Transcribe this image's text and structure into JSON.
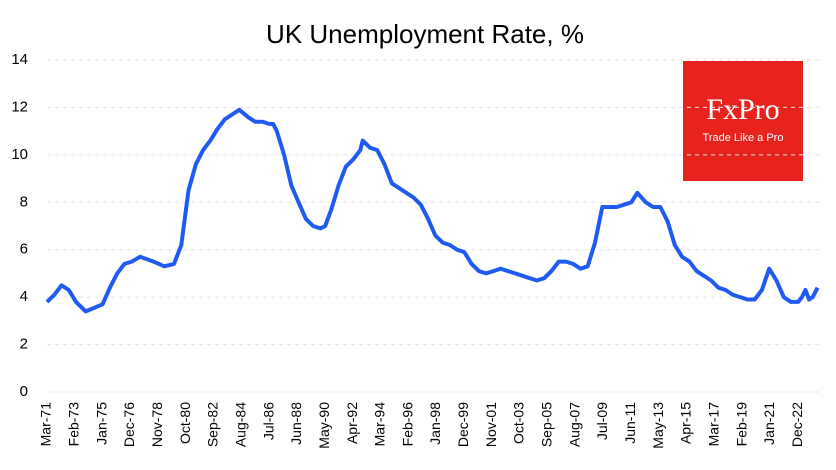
{
  "chart_data": {
    "type": "line",
    "title": "UK Unemployment  Rate, %",
    "x": [
      "Mar-71",
      "Sep-71",
      "Mar-72",
      "Sep-72",
      "Mar-73",
      "Nov-73",
      "Jan-75",
      "Jul-75",
      "Jan-76",
      "Jul-76",
      "Jan-77",
      "Aug-77",
      "Jul-78",
      "Apr-79",
      "Dec-79",
      "Jun-80",
      "Dec-80",
      "Jun-81",
      "Dec-81",
      "Jun-82",
      "Dec-82",
      "Jun-83",
      "Dec-83",
      "Jun-84",
      "Jan-85",
      "Jul-85",
      "Jan-86",
      "Jul-86",
      "Oct-86",
      "Jan-87",
      "Jul-87",
      "Jan-88",
      "Jul-88",
      "Jan-89",
      "Jul-89",
      "Jan-90",
      "May-90",
      "Oct-90",
      "Apr-91",
      "Oct-91",
      "Apr-92",
      "Oct-92",
      "Dec-92",
      "Jun-93",
      "Dec-93",
      "Jun-94",
      "Dec-94",
      "Jun-95",
      "Dec-95",
      "Jun-96",
      "Dec-96",
      "Jun-97",
      "Dec-97",
      "Jun-98",
      "Dec-98",
      "Jun-99",
      "Dec-99",
      "Jun-00",
      "Dec-00",
      "Jun-01",
      "Dec-01",
      "Jun-02",
      "Dec-02",
      "Jun-03",
      "Dec-03",
      "Jun-04",
      "Dec-04",
      "Jun-05",
      "Dec-05",
      "Jun-06",
      "Dec-06",
      "Jun-07",
      "Dec-07",
      "Jun-08",
      "Dec-08",
      "Jun-09",
      "Dec-09",
      "Jun-10",
      "Dec-10",
      "Jun-11",
      "Nov-11",
      "Jun-12",
      "Dec-12",
      "Jun-13",
      "Dec-13",
      "Jun-14",
      "Dec-14",
      "Jun-15",
      "Dec-15",
      "Jun-16",
      "Dec-16",
      "Jun-17",
      "Dec-17",
      "Jun-18",
      "Dec-18",
      "Jun-19",
      "Dec-19",
      "Jun-20",
      "Dec-20",
      "Jun-21",
      "Dec-21",
      "Jun-22",
      "Dec-22",
      "Mar-23",
      "Jun-23",
      "Sep-23",
      "Dec-23",
      "Apr-24"
    ],
    "values": [
      3.8,
      4.1,
      4.5,
      4.3,
      3.8,
      3.4,
      3.7,
      4.4,
      5.0,
      5.4,
      5.5,
      5.7,
      5.5,
      5.3,
      5.4,
      6.2,
      8.5,
      9.6,
      10.2,
      10.6,
      11.1,
      11.5,
      11.7,
      11.9,
      11.6,
      11.4,
      11.4,
      11.3,
      11.3,
      11.0,
      10.0,
      8.7,
      8.0,
      7.3,
      7.0,
      6.9,
      7.0,
      7.7,
      8.7,
      9.5,
      9.8,
      10.2,
      10.6,
      10.3,
      10.2,
      9.6,
      8.8,
      8.6,
      8.4,
      8.2,
      7.9,
      7.3,
      6.6,
      6.3,
      6.2,
      6.0,
      5.9,
      5.4,
      5.1,
      5.0,
      5.1,
      5.2,
      5.1,
      5.0,
      4.9,
      4.8,
      4.7,
      4.8,
      5.1,
      5.5,
      5.5,
      5.4,
      5.2,
      5.3,
      6.3,
      7.8,
      7.8,
      7.8,
      7.9,
      8.0,
      8.4,
      8.0,
      7.8,
      7.8,
      7.2,
      6.2,
      5.7,
      5.5,
      5.1,
      4.9,
      4.7,
      4.4,
      4.3,
      4.1,
      4.0,
      3.9,
      3.9,
      4.3,
      5.2,
      4.7,
      4.0,
      3.8,
      3.8,
      4.0,
      4.3,
      3.9,
      4.0,
      4.4
    ],
    "color": "#1f5bf0",
    "xlim": [
      "Mar-71",
      "Jun-24"
    ],
    "xticks": [
      "Mar-71",
      "Feb-73",
      "Jan-75",
      "Dec-76",
      "Nov-78",
      "Oct-80",
      "Sep-82",
      "Aug-84",
      "Jul-86",
      "Jun-88",
      "May-90",
      "Apr-92",
      "Mar-94",
      "Feb-96",
      "Jan-98",
      "Dec-99",
      "Nov-01",
      "Oct-03",
      "Sep-05",
      "Aug-07",
      "Jul-09",
      "Jun-11",
      "May-13",
      "Apr-15",
      "Mar-17",
      "Feb-19",
      "Jan-21",
      "Dec-22"
    ],
    "ylim": [
      0,
      14
    ],
    "yticks": [
      0,
      2,
      4,
      6,
      8,
      10,
      12,
      14
    ],
    "grid": true
  },
  "logo": {
    "name": "FxPro",
    "tagline": "Trade Like a Pro"
  }
}
